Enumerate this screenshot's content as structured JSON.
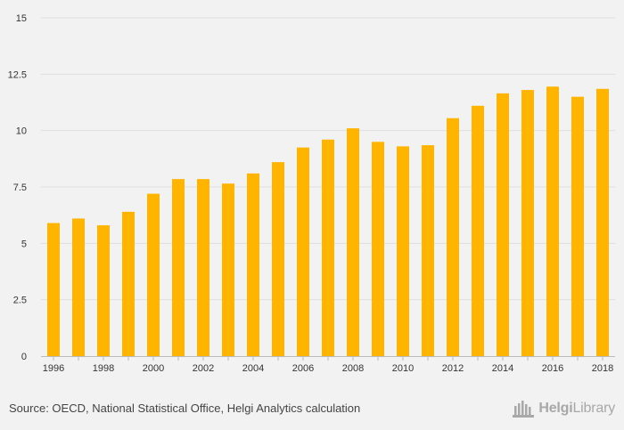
{
  "chart_data": {
    "type": "bar",
    "categories": [
      "1996",
      "1997",
      "1998",
      "1999",
      "2000",
      "2001",
      "2002",
      "2003",
      "2004",
      "2005",
      "2006",
      "2007",
      "2008",
      "2009",
      "2010",
      "2011",
      "2012",
      "2013",
      "2014",
      "2015",
      "2016",
      "2017",
      "2018"
    ],
    "values": [
      5.9,
      6.1,
      5.8,
      6.4,
      7.2,
      7.85,
      7.85,
      7.65,
      8.1,
      8.6,
      9.25,
      9.6,
      10.1,
      9.5,
      9.3,
      9.35,
      10.55,
      11.1,
      11.65,
      11.8,
      11.95,
      11.5,
      11.85
    ],
    "x_tick_labels": [
      "1996",
      "1998",
      "2000",
      "2002",
      "2004",
      "2006",
      "2008",
      "2010",
      "2012",
      "2014",
      "2016",
      "2018"
    ],
    "y_ticks": [
      0,
      2.5,
      5,
      7.5,
      10,
      12.5,
      15
    ],
    "y_tick_labels": [
      "0",
      "2.5",
      "5",
      "7.5",
      "10",
      "12.5",
      "15"
    ],
    "ylim": [
      0,
      15
    ],
    "title": "",
    "xlabel": "",
    "ylabel": "",
    "grid": true,
    "bar_color": "#ffb400"
  },
  "footer": {
    "source": "Source: OECD, National Statistical Office, Helgi Analytics calculation",
    "brand_name_part1": "Helgi",
    "brand_name_part2": "Library",
    "brand_logo_icon": "library-building-icon",
    "brand_color": "#a8a8a8"
  }
}
